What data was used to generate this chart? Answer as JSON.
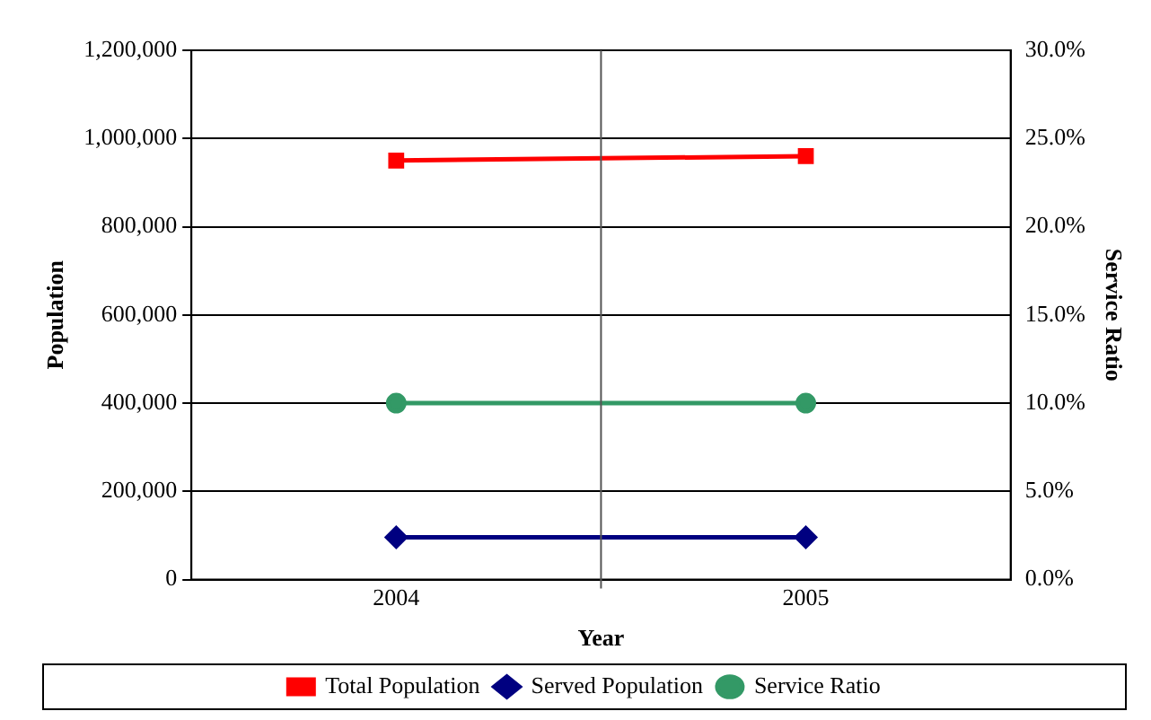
{
  "chart_data": {
    "type": "line",
    "xlabel": "Year",
    "ylabel": "Population",
    "y2label": "Service Ratio",
    "x": [
      2004,
      2005
    ],
    "xlim": [
      2003.5,
      2005.5
    ],
    "xticks": [
      2004,
      2005
    ],
    "series": [
      {
        "name": "Total Population",
        "color": "#ff0000",
        "marker": "square",
        "values": [
          950000,
          960000
        ]
      },
      {
        "name": "Served Population",
        "color": "#000080",
        "marker": "diamond",
        "values": [
          96000,
          96000
        ]
      },
      {
        "name": "Service Ratio",
        "color": "#339966",
        "marker": "circle",
        "axis": "y2",
        "values": [
          10,
          10
        ]
      }
    ],
    "ylim": [
      0,
      1200000
    ],
    "yticks": [
      0,
      {
        "value": 200000,
        "label": "200,000"
      },
      {
        "value": 400000,
        "label": "400,000"
      },
      {
        "value": 600000,
        "label": "600,000"
      },
      {
        "value": 800000,
        "label": "800,000"
      },
      {
        "value": 1000000,
        "label": "1,000,000"
      },
      {
        "value": 1200000,
        "label": "1,200,000"
      }
    ],
    "y2lim": [
      0,
      30
    ],
    "y2ticks": [
      {
        "value": 0,
        "label": "0.0%"
      },
      {
        "value": 5,
        "label": "5.0%"
      },
      {
        "value": 10,
        "label": "10.0%"
      },
      {
        "value": 15,
        "label": "15.0%"
      },
      {
        "value": 20,
        "label": "20.0%"
      },
      {
        "value": 25,
        "label": "25.0%"
      },
      {
        "value": 30,
        "label": "30.0%"
      }
    ],
    "ref_lines": [
      {
        "axis": "x",
        "value": 2004.5,
        "color": "#555555"
      }
    ],
    "grid": "y",
    "legend": "bottom",
    "line_style": "solid"
  }
}
